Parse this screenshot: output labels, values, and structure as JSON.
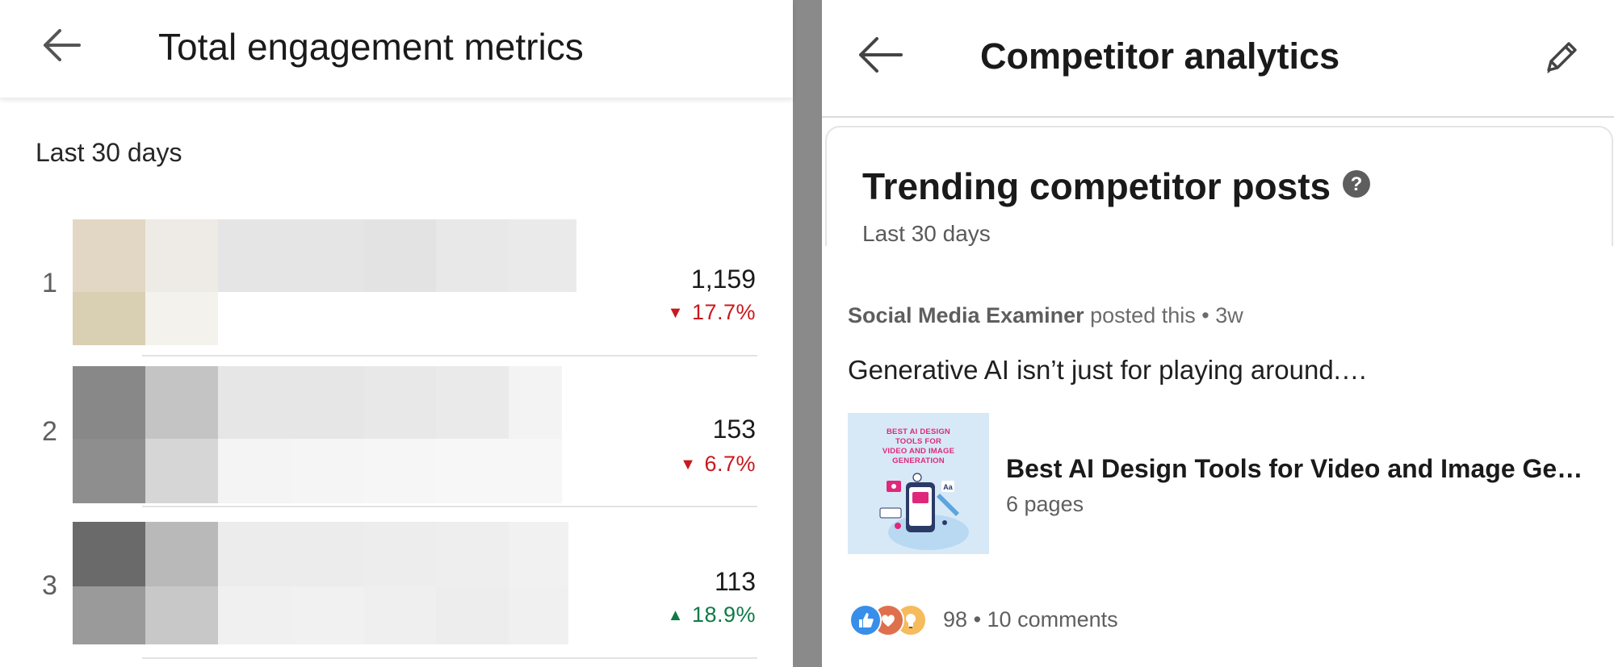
{
  "left": {
    "title": "Total engagement metrics",
    "period": "Last 30 days",
    "rows": [
      {
        "rank": "1",
        "value": "1,159",
        "change_symbol": "▼",
        "change": "17.7%",
        "direction": "down"
      },
      {
        "rank": "2",
        "value": "153",
        "change_symbol": "▼",
        "change": "6.7%",
        "direction": "down"
      },
      {
        "rank": "3",
        "value": "113",
        "change_symbol": "▲",
        "change": "18.9%",
        "direction": "up"
      }
    ]
  },
  "right": {
    "title": "Competitor analytics",
    "card": {
      "title": "Trending competitor posts",
      "period": "Last 30 days"
    },
    "post": {
      "author": "Social Media Examiner",
      "action": "posted this",
      "separator": "•",
      "age": "3w",
      "text": "Generative AI isn’t just for playing around.…",
      "document": {
        "thumb_text": "BEST AI DESIGN\nTOOLS FOR\nVIDEO AND IMAGE\nGENERATION",
        "title": "Best AI Design Tools for Video and Image Generation",
        "pages": "6 pages"
      },
      "reactions_count": "98",
      "counts_separator": "•",
      "comments": "10 comments"
    }
  },
  "icons": {
    "back": "arrow-left-icon",
    "edit": "pencil-icon",
    "help": "question-circle-icon",
    "change_down": "triangle-down-icon",
    "change_up": "triangle-up-icon",
    "reactions": [
      "like-icon",
      "love-icon",
      "insightful-icon"
    ]
  },
  "colors": {
    "decrease": "#c8191d",
    "increase": "#0f7a46",
    "like": "#378fe9",
    "love": "#df704d",
    "insightful": "#f5bb5c",
    "panel_gap": "#8a8a8a"
  }
}
